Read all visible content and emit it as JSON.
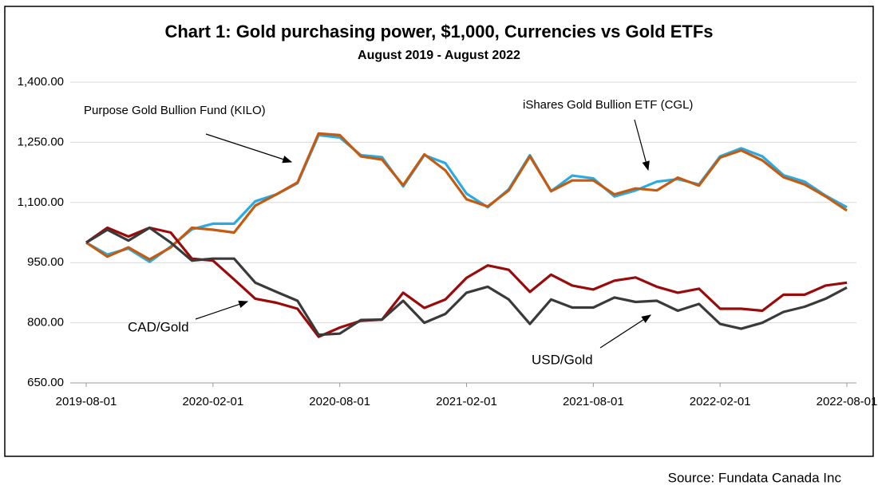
{
  "chart_data": {
    "type": "line",
    "title": "Chart 1: Gold purchasing power, $1,000, Currencies vs Gold ETFs",
    "subtitle": "August 2019 - August 2022",
    "source": "Source: Fundata Canada Inc",
    "annotations": [
      "Purpose Gold Bullion Fund (KILO)",
      "iShares Gold Bullion ETF (CGL)",
      "CAD/Gold",
      "USD/Gold"
    ],
    "x": [
      "2019-08-01",
      "2019-09-01",
      "2019-10-01",
      "2019-11-01",
      "2019-12-01",
      "2020-01-01",
      "2020-02-01",
      "2020-03-01",
      "2020-04-01",
      "2020-05-01",
      "2020-06-01",
      "2020-07-01",
      "2020-08-01",
      "2020-09-01",
      "2020-10-01",
      "2020-11-01",
      "2020-12-01",
      "2021-01-01",
      "2021-02-01",
      "2021-03-01",
      "2021-04-01",
      "2021-05-01",
      "2021-06-01",
      "2021-07-01",
      "2021-08-01",
      "2021-09-01",
      "2021-10-01",
      "2021-11-01",
      "2021-12-01",
      "2022-01-01",
      "2022-02-01",
      "2022-03-01",
      "2022-04-01",
      "2022-05-01",
      "2022-06-01",
      "2022-07-01",
      "2022-08-01"
    ],
    "series": [
      {
        "name": "iShares Gold Bullion ETF (CGL)",
        "color": "#29abe2",
        "values": [
          1000,
          970,
          985,
          952,
          990,
          1033,
          1047,
          1047,
          1103,
          1120,
          1148,
          1268,
          1262,
          1218,
          1213,
          1140,
          1218,
          1198,
          1122,
          1088,
          1133,
          1218,
          1128,
          1167,
          1160,
          1115,
          1130,
          1152,
          1158,
          1145,
          1215,
          1235,
          1215,
          1168,
          1152,
          1117,
          1088
        ]
      },
      {
        "name": "Purpose Gold Bullion Fund (KILO)",
        "color": "#c55a11",
        "values": [
          1000,
          965,
          988,
          958,
          988,
          1037,
          1032,
          1025,
          1092,
          1120,
          1150,
          1272,
          1268,
          1215,
          1207,
          1143,
          1220,
          1180,
          1108,
          1090,
          1130,
          1215,
          1128,
          1155,
          1155,
          1120,
          1135,
          1130,
          1162,
          1142,
          1212,
          1230,
          1205,
          1163,
          1145,
          1115,
          1080
        ]
      },
      {
        "name": "CAD/Gold",
        "color": "#9b0a0a",
        "values": [
          1000,
          1037,
          1015,
          1037,
          1025,
          960,
          955,
          908,
          860,
          850,
          835,
          765,
          788,
          805,
          808,
          875,
          837,
          858,
          912,
          943,
          932,
          877,
          920,
          893,
          883,
          905,
          913,
          890,
          875,
          885,
          835,
          835,
          830,
          870,
          870,
          893,
          900
        ]
      },
      {
        "name": "USD/Gold",
        "color": "#3a3a3a",
        "values": [
          1000,
          1032,
          1005,
          1037,
          1000,
          955,
          960,
          960,
          900,
          877,
          855,
          770,
          773,
          807,
          808,
          855,
          800,
          822,
          875,
          890,
          858,
          797,
          858,
          838,
          838,
          863,
          852,
          855,
          830,
          847,
          797,
          785,
          800,
          827,
          840,
          860,
          888
        ]
      }
    ],
    "xticks": [
      "2019-08-01",
      "2020-02-01",
      "2020-08-01",
      "2021-02-01",
      "2021-08-01",
      "2022-02-01",
      "2022-08-01"
    ],
    "ylim": [
      650,
      1400
    ],
    "yticks": [
      {
        "value": 650,
        "label": "650.00"
      },
      {
        "value": 800,
        "label": "800.00"
      },
      {
        "value": 950,
        "label": "950.00"
      },
      {
        "value": 1100,
        "label": "1,100.00"
      },
      {
        "value": 1250,
        "label": "1,250.00"
      },
      {
        "value": 1400,
        "label": "1,400.00"
      }
    ],
    "grid": true
  }
}
